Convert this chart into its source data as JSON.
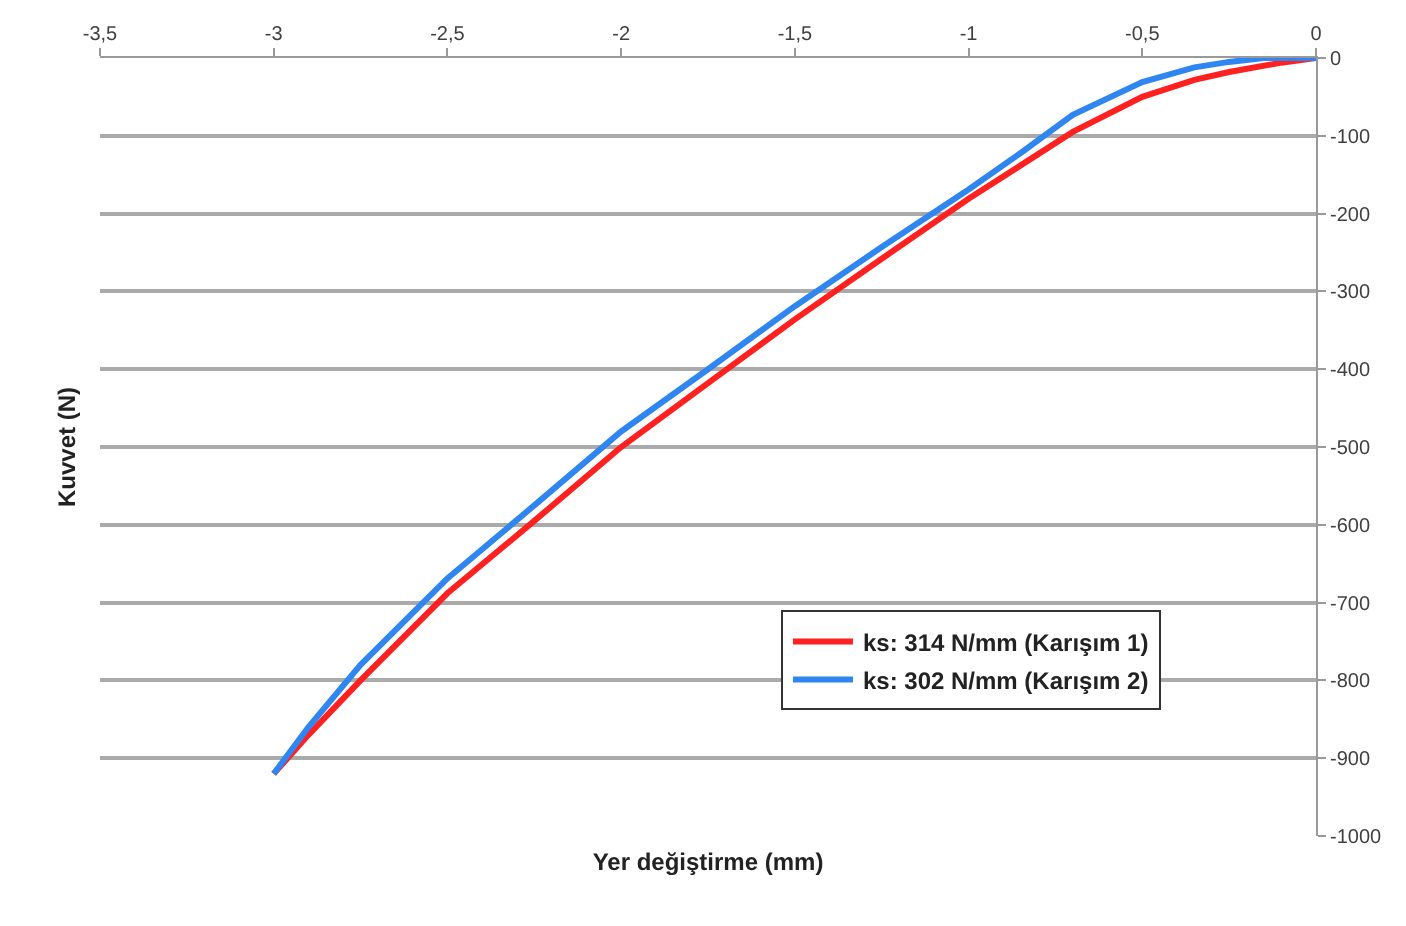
{
  "chart_data": {
    "type": "line",
    "xlabel": "Yer değiştirme (mm)",
    "ylabel": "Kuvvet (N)",
    "xlim": [
      -3.5,
      0
    ],
    "ylim": [
      -1000,
      0
    ],
    "xticks": [
      {
        "value": -3.5,
        "label": "-3,5"
      },
      -3,
      {
        "value": -2.5,
        "label": "-2,5"
      },
      -2,
      {
        "value": -1.5,
        "label": "-1,5"
      },
      -1,
      {
        "value": -0.5,
        "label": "-0,5"
      },
      0
    ],
    "yticks": [
      -1000,
      -900,
      -800,
      -700,
      -600,
      -500,
      -400,
      -300,
      -200,
      -100,
      0
    ],
    "grid": "y",
    "legend": "bottom right",
    "marker": "none",
    "line_style": "solid",
    "series": [
      {
        "name": "ks: 314 N/mm (Karışım 1)",
        "color": "#ff2020",
        "x": [
          -3.0,
          -2.9,
          -2.75,
          -2.5,
          -2.25,
          -2.0,
          -1.75,
          -1.5,
          -1.25,
          -1.0,
          -0.85,
          -0.7,
          -0.5,
          -0.35,
          -0.25,
          -0.1,
          0
        ],
        "values": [
          -920,
          -870,
          -800,
          -688,
          -595,
          -500,
          -418,
          -336,
          -258,
          -181,
          -138,
          -95,
          -50,
          -28,
          -18,
          -6,
          0
        ]
      },
      {
        "name": "ks: 302 N/mm (Karışım 2)",
        "color": "#2f86f0",
        "x": [
          -3.0,
          -2.9,
          -2.75,
          -2.5,
          -2.25,
          -2.0,
          -1.75,
          -1.5,
          -1.25,
          -1.0,
          -0.85,
          -0.7,
          -0.5,
          -0.35,
          -0.25,
          -0.15,
          0
        ],
        "values": [
          -920,
          -860,
          -780,
          -669,
          -575,
          -480,
          -400,
          -319,
          -243,
          -169,
          -122,
          -73,
          -31,
          -12,
          -5,
          0,
          0
        ]
      }
    ]
  }
}
